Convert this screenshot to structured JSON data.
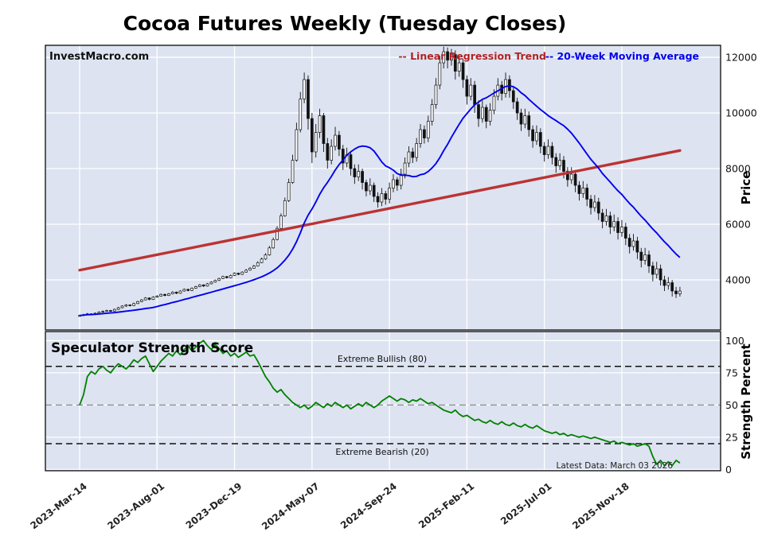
{
  "title": "Cocoa Futures Weekly (Tuesday Closes)",
  "watermark": "InvestMacro.com",
  "legend": {
    "regression_label": "-- Linear Regression Trend",
    "regression_color": "#b22222",
    "ma_label": "-- 20-Week Moving Average",
    "ma_color": "#0000ee"
  },
  "colors": {
    "panel_background": "#dde3f0",
    "grid": "#ffffff",
    "border": "#1a1a1a",
    "regression": "#bb3333",
    "moving_average": "#0000ee",
    "strength_line": "#008000",
    "candle_up": "#ffffff",
    "candle_down": "#111111"
  },
  "price_axis": {
    "label": "Price"
  },
  "strength_axis": {
    "label": "Strength Percent"
  },
  "strength_panel": {
    "title": "Speculator Strength Score",
    "bullish_label": "Extreme Bullish (80)",
    "bullish_level": 80,
    "bearish_label": "Extreme Bearish (20)",
    "bearish_level": 20,
    "midline_level": 50,
    "latest_label": "Latest Data: March 03 2026"
  },
  "chart_data": [
    {
      "type": "candlestick",
      "title": "Cocoa Futures Weekly (Tuesday Closes)",
      "interval": "weekly",
      "ylabel": "Price",
      "ylim": [
        2200,
        12430
      ],
      "yticks": [
        4000,
        6000,
        8000,
        10000,
        12000
      ],
      "x_tick_labels": [
        "2023-Mar-14",
        "2023-Aug-01",
        "2023-Dec-19",
        "2024-May-07",
        "2024-Sep-24",
        "2025-Feb-11",
        "2025-Jul-01",
        "2025-Nov-18"
      ],
      "x_tick_indices": [
        0,
        20,
        40,
        60,
        80,
        100,
        120,
        140
      ],
      "ohlc": [
        [
          2700,
          2750,
          2680,
          2720
        ],
        [
          2720,
          2780,
          2700,
          2750
        ],
        [
          2750,
          2810,
          2730,
          2780
        ],
        [
          2780,
          2800,
          2730,
          2760
        ],
        [
          2760,
          2830,
          2740,
          2800
        ],
        [
          2800,
          2870,
          2780,
          2840
        ],
        [
          2840,
          2900,
          2820,
          2870
        ],
        [
          2870,
          2930,
          2850,
          2900
        ],
        [
          2900,
          2920,
          2850,
          2880
        ],
        [
          2880,
          2970,
          2860,
          2940
        ],
        [
          2940,
          3030,
          2920,
          3000
        ],
        [
          3000,
          3090,
          2980,
          3060
        ],
        [
          3060,
          3130,
          3030,
          3100
        ],
        [
          3100,
          3120,
          3050,
          3080
        ],
        [
          3080,
          3180,
          3060,
          3150
        ],
        [
          3150,
          3250,
          3130,
          3220
        ],
        [
          3220,
          3310,
          3200,
          3280
        ],
        [
          3280,
          3380,
          3260,
          3350
        ],
        [
          3350,
          3370,
          3270,
          3300
        ],
        [
          3300,
          3410,
          3280,
          3380
        ],
        [
          3380,
          3450,
          3360,
          3420
        ],
        [
          3420,
          3510,
          3400,
          3480
        ],
        [
          3480,
          3500,
          3410,
          3440
        ],
        [
          3440,
          3530,
          3420,
          3500
        ],
        [
          3500,
          3590,
          3480,
          3560
        ],
        [
          3560,
          3580,
          3490,
          3520
        ],
        [
          3520,
          3630,
          3500,
          3600
        ],
        [
          3600,
          3690,
          3580,
          3660
        ],
        [
          3660,
          3680,
          3590,
          3620
        ],
        [
          3620,
          3730,
          3600,
          3700
        ],
        [
          3700,
          3790,
          3680,
          3760
        ],
        [
          3760,
          3850,
          3740,
          3820
        ],
        [
          3820,
          3840,
          3750,
          3780
        ],
        [
          3780,
          3890,
          3760,
          3860
        ],
        [
          3860,
          3950,
          3840,
          3920
        ],
        [
          3920,
          4010,
          3900,
          3980
        ],
        [
          3980,
          4080,
          3960,
          4050
        ],
        [
          4050,
          4150,
          4030,
          4120
        ],
        [
          4120,
          4140,
          4050,
          4080
        ],
        [
          4080,
          4190,
          4060,
          4160
        ],
        [
          4160,
          4270,
          4140,
          4240
        ],
        [
          4240,
          4260,
          4170,
          4200
        ],
        [
          4200,
          4310,
          4180,
          4280
        ],
        [
          4280,
          4390,
          4260,
          4350
        ],
        [
          4350,
          4460,
          4330,
          4420
        ],
        [
          4420,
          4540,
          4400,
          4500
        ],
        [
          4500,
          4670,
          4480,
          4620
        ],
        [
          4620,
          4800,
          4600,
          4750
        ],
        [
          4750,
          4960,
          4720,
          4900
        ],
        [
          4900,
          5220,
          4870,
          5150
        ],
        [
          5150,
          5520,
          5120,
          5450
        ],
        [
          5450,
          5930,
          5420,
          5850
        ],
        [
          5850,
          6390,
          5820,
          6300
        ],
        [
          6300,
          6960,
          6270,
          6850
        ],
        [
          6850,
          7640,
          6800,
          7500
        ],
        [
          7500,
          8500,
          7450,
          8300
        ],
        [
          8300,
          9650,
          8250,
          9400
        ],
        [
          9400,
          10750,
          9300,
          10500
        ],
        [
          10500,
          11450,
          10350,
          11200
        ],
        [
          11200,
          11350,
          9400,
          9800
        ],
        [
          9800,
          10000,
          8200,
          8600
        ],
        [
          8600,
          9600,
          8400,
          9300
        ],
        [
          9300,
          10150,
          9100,
          9900
        ],
        [
          9900,
          10000,
          8600,
          8900
        ],
        [
          8900,
          9100,
          8000,
          8300
        ],
        [
          8300,
          9050,
          8150,
          8800
        ],
        [
          8800,
          9500,
          8650,
          9200
        ],
        [
          9200,
          9350,
          8450,
          8700
        ],
        [
          8700,
          8850,
          7950,
          8200
        ],
        [
          8200,
          8750,
          8050,
          8500
        ],
        [
          8500,
          8600,
          7750,
          8000
        ],
        [
          8000,
          8150,
          7450,
          7700
        ],
        [
          7700,
          8150,
          7550,
          7900
        ],
        [
          7900,
          8000,
          7250,
          7500
        ],
        [
          7500,
          7600,
          7000,
          7200
        ],
        [
          7200,
          7650,
          7050,
          7400
        ],
        [
          7400,
          7500,
          6800,
          7000
        ],
        [
          7000,
          7150,
          6600,
          6800
        ],
        [
          6800,
          7300,
          6650,
          7100
        ],
        [
          7100,
          7200,
          6700,
          6900
        ],
        [
          6900,
          7500,
          6750,
          7300
        ],
        [
          7300,
          7800,
          7150,
          7600
        ],
        [
          7600,
          7700,
          7200,
          7400
        ],
        [
          7400,
          8000,
          7250,
          7800
        ],
        [
          7800,
          8400,
          7650,
          8200
        ],
        [
          8200,
          8800,
          8050,
          8600
        ],
        [
          8600,
          8750,
          8200,
          8400
        ],
        [
          8400,
          9100,
          8250,
          8900
        ],
        [
          8900,
          9600,
          8750,
          9400
        ],
        [
          9400,
          9550,
          8900,
          9100
        ],
        [
          9100,
          9900,
          8950,
          9700
        ],
        [
          9700,
          10500,
          9550,
          10300
        ],
        [
          10300,
          11250,
          10150,
          11000
        ],
        [
          11000,
          12050,
          10850,
          11800
        ],
        [
          11800,
          12380,
          11600,
          12200
        ],
        [
          12200,
          12350,
          11600,
          11900
        ],
        [
          11900,
          12300,
          11700,
          12100
        ],
        [
          12100,
          12250,
          11200,
          11500
        ],
        [
          11500,
          12050,
          11300,
          11800
        ],
        [
          11800,
          11950,
          10900,
          11200
        ],
        [
          11200,
          11350,
          10300,
          10600
        ],
        [
          10600,
          11250,
          10450,
          11000
        ],
        [
          11000,
          11150,
          10000,
          10300
        ],
        [
          10300,
          10450,
          9500,
          9800
        ],
        [
          9800,
          10450,
          9650,
          10200
        ],
        [
          10200,
          10300,
          9450,
          9700
        ],
        [
          9700,
          10350,
          9550,
          10100
        ],
        [
          10100,
          10850,
          9950,
          10600
        ],
        [
          10600,
          11250,
          10450,
          11000
        ],
        [
          11000,
          11150,
          10450,
          10700
        ],
        [
          10700,
          11450,
          10550,
          11200
        ],
        [
          11200,
          11350,
          10550,
          10800
        ],
        [
          10800,
          10950,
          10150,
          10400
        ],
        [
          10400,
          10550,
          9750,
          10000
        ],
        [
          10000,
          10150,
          9350,
          9600
        ],
        [
          9600,
          10150,
          9450,
          9900
        ],
        [
          9900,
          10050,
          9150,
          9400
        ],
        [
          9400,
          9550,
          8750,
          9000
        ],
        [
          9000,
          9550,
          8850,
          9300
        ],
        [
          9300,
          9450,
          8550,
          8800
        ],
        [
          8800,
          8950,
          8250,
          8500
        ],
        [
          8500,
          9050,
          8350,
          8800
        ],
        [
          8800,
          8950,
          8150,
          8400
        ],
        [
          8400,
          8550,
          7850,
          8100
        ],
        [
          8100,
          8550,
          7950,
          8300
        ],
        [
          8300,
          8450,
          7650,
          7900
        ],
        [
          7900,
          8050,
          7350,
          7600
        ],
        [
          7600,
          8050,
          7450,
          7800
        ],
        [
          7800,
          7950,
          7150,
          7400
        ],
        [
          7400,
          7550,
          6850,
          7100
        ],
        [
          7100,
          7550,
          6950,
          7300
        ],
        [
          7300,
          7450,
          6650,
          6900
        ],
        [
          6900,
          7050,
          6350,
          6600
        ],
        [
          6600,
          7050,
          6450,
          6800
        ],
        [
          6800,
          6950,
          6150,
          6400
        ],
        [
          6400,
          6550,
          5850,
          6100
        ],
        [
          6100,
          6550,
          5950,
          6300
        ],
        [
          6300,
          6450,
          5650,
          5900
        ],
        [
          5900,
          6350,
          5750,
          6100
        ],
        [
          6100,
          6250,
          5450,
          5700
        ],
        [
          5700,
          6150,
          5550,
          5900
        ],
        [
          5900,
          6050,
          5250,
          5500
        ],
        [
          5500,
          5650,
          4950,
          5200
        ],
        [
          5200,
          5650,
          5050,
          5400
        ],
        [
          5400,
          5550,
          4750,
          5000
        ],
        [
          5000,
          5150,
          4450,
          4700
        ],
        [
          4700,
          5150,
          4550,
          4900
        ],
        [
          4900,
          5050,
          4250,
          4500
        ],
        [
          4500,
          4650,
          3950,
          4200
        ],
        [
          4200,
          4650,
          4050,
          4400
        ],
        [
          4400,
          4550,
          3800,
          4000
        ],
        [
          4000,
          4150,
          3600,
          3800
        ],
        [
          3800,
          4100,
          3650,
          3900
        ],
        [
          3900,
          4000,
          3400,
          3600
        ],
        [
          3600,
          3750,
          3350,
          3500
        ],
        [
          3500,
          3750,
          3400,
          3600
        ]
      ],
      "overlays": [
        {
          "name": "20-Week Moving Average",
          "type": "moving_average",
          "window": 20
        },
        {
          "name": "Linear Regression Trend",
          "type": "linear_trend",
          "start_value": 4350,
          "end_value": 8650
        }
      ]
    },
    {
      "type": "line",
      "title": "Speculator Strength Score",
      "ylabel": "Strength Percent",
      "ylim": [
        -1,
        107
      ],
      "yticks": [
        0,
        25,
        50,
        75,
        100
      ],
      "values": [
        50,
        58,
        72,
        76,
        74,
        78,
        80,
        77,
        75,
        79,
        82,
        80,
        78,
        81,
        85,
        83,
        86,
        88,
        82,
        76,
        80,
        84,
        87,
        90,
        88,
        92,
        89,
        93,
        96,
        92,
        95,
        98,
        100,
        96,
        93,
        97,
        94,
        90,
        92,
        88,
        90,
        87,
        89,
        91,
        88,
        89,
        84,
        78,
        72,
        68,
        63,
        60,
        62,
        58,
        55,
        52,
        50,
        48,
        50,
        47,
        49,
        52,
        50,
        48,
        51,
        49,
        52,
        50,
        48,
        50,
        47,
        49,
        51,
        49,
        52,
        50,
        48,
        50,
        53,
        55,
        57,
        55,
        53,
        55,
        54,
        52,
        54,
        53,
        55,
        53,
        51,
        52,
        50,
        48,
        46,
        45,
        44,
        46,
        43,
        41,
        42,
        40,
        38,
        39,
        37,
        36,
        38,
        36,
        35,
        37,
        35,
        34,
        36,
        34,
        33,
        35,
        33,
        32,
        34,
        32,
        30,
        29,
        28,
        29,
        27,
        28,
        26,
        27,
        26,
        25,
        26,
        25,
        24,
        25,
        24,
        23,
        22,
        21,
        22,
        20,
        21,
        20,
        19,
        20,
        18,
        19,
        20,
        18,
        10,
        4,
        7,
        3,
        6,
        3,
        7,
        5
      ],
      "reference_lines": [
        {
          "label": "Extreme Bullish (80)",
          "value": 80,
          "style": "dashed-black"
        },
        {
          "label": "Extreme Bearish (20)",
          "value": 20,
          "style": "dashed-black"
        },
        {
          "label": "",
          "value": 50,
          "style": "dashed-gray"
        }
      ],
      "annotation": "Latest Data: March 03 2026"
    }
  ]
}
